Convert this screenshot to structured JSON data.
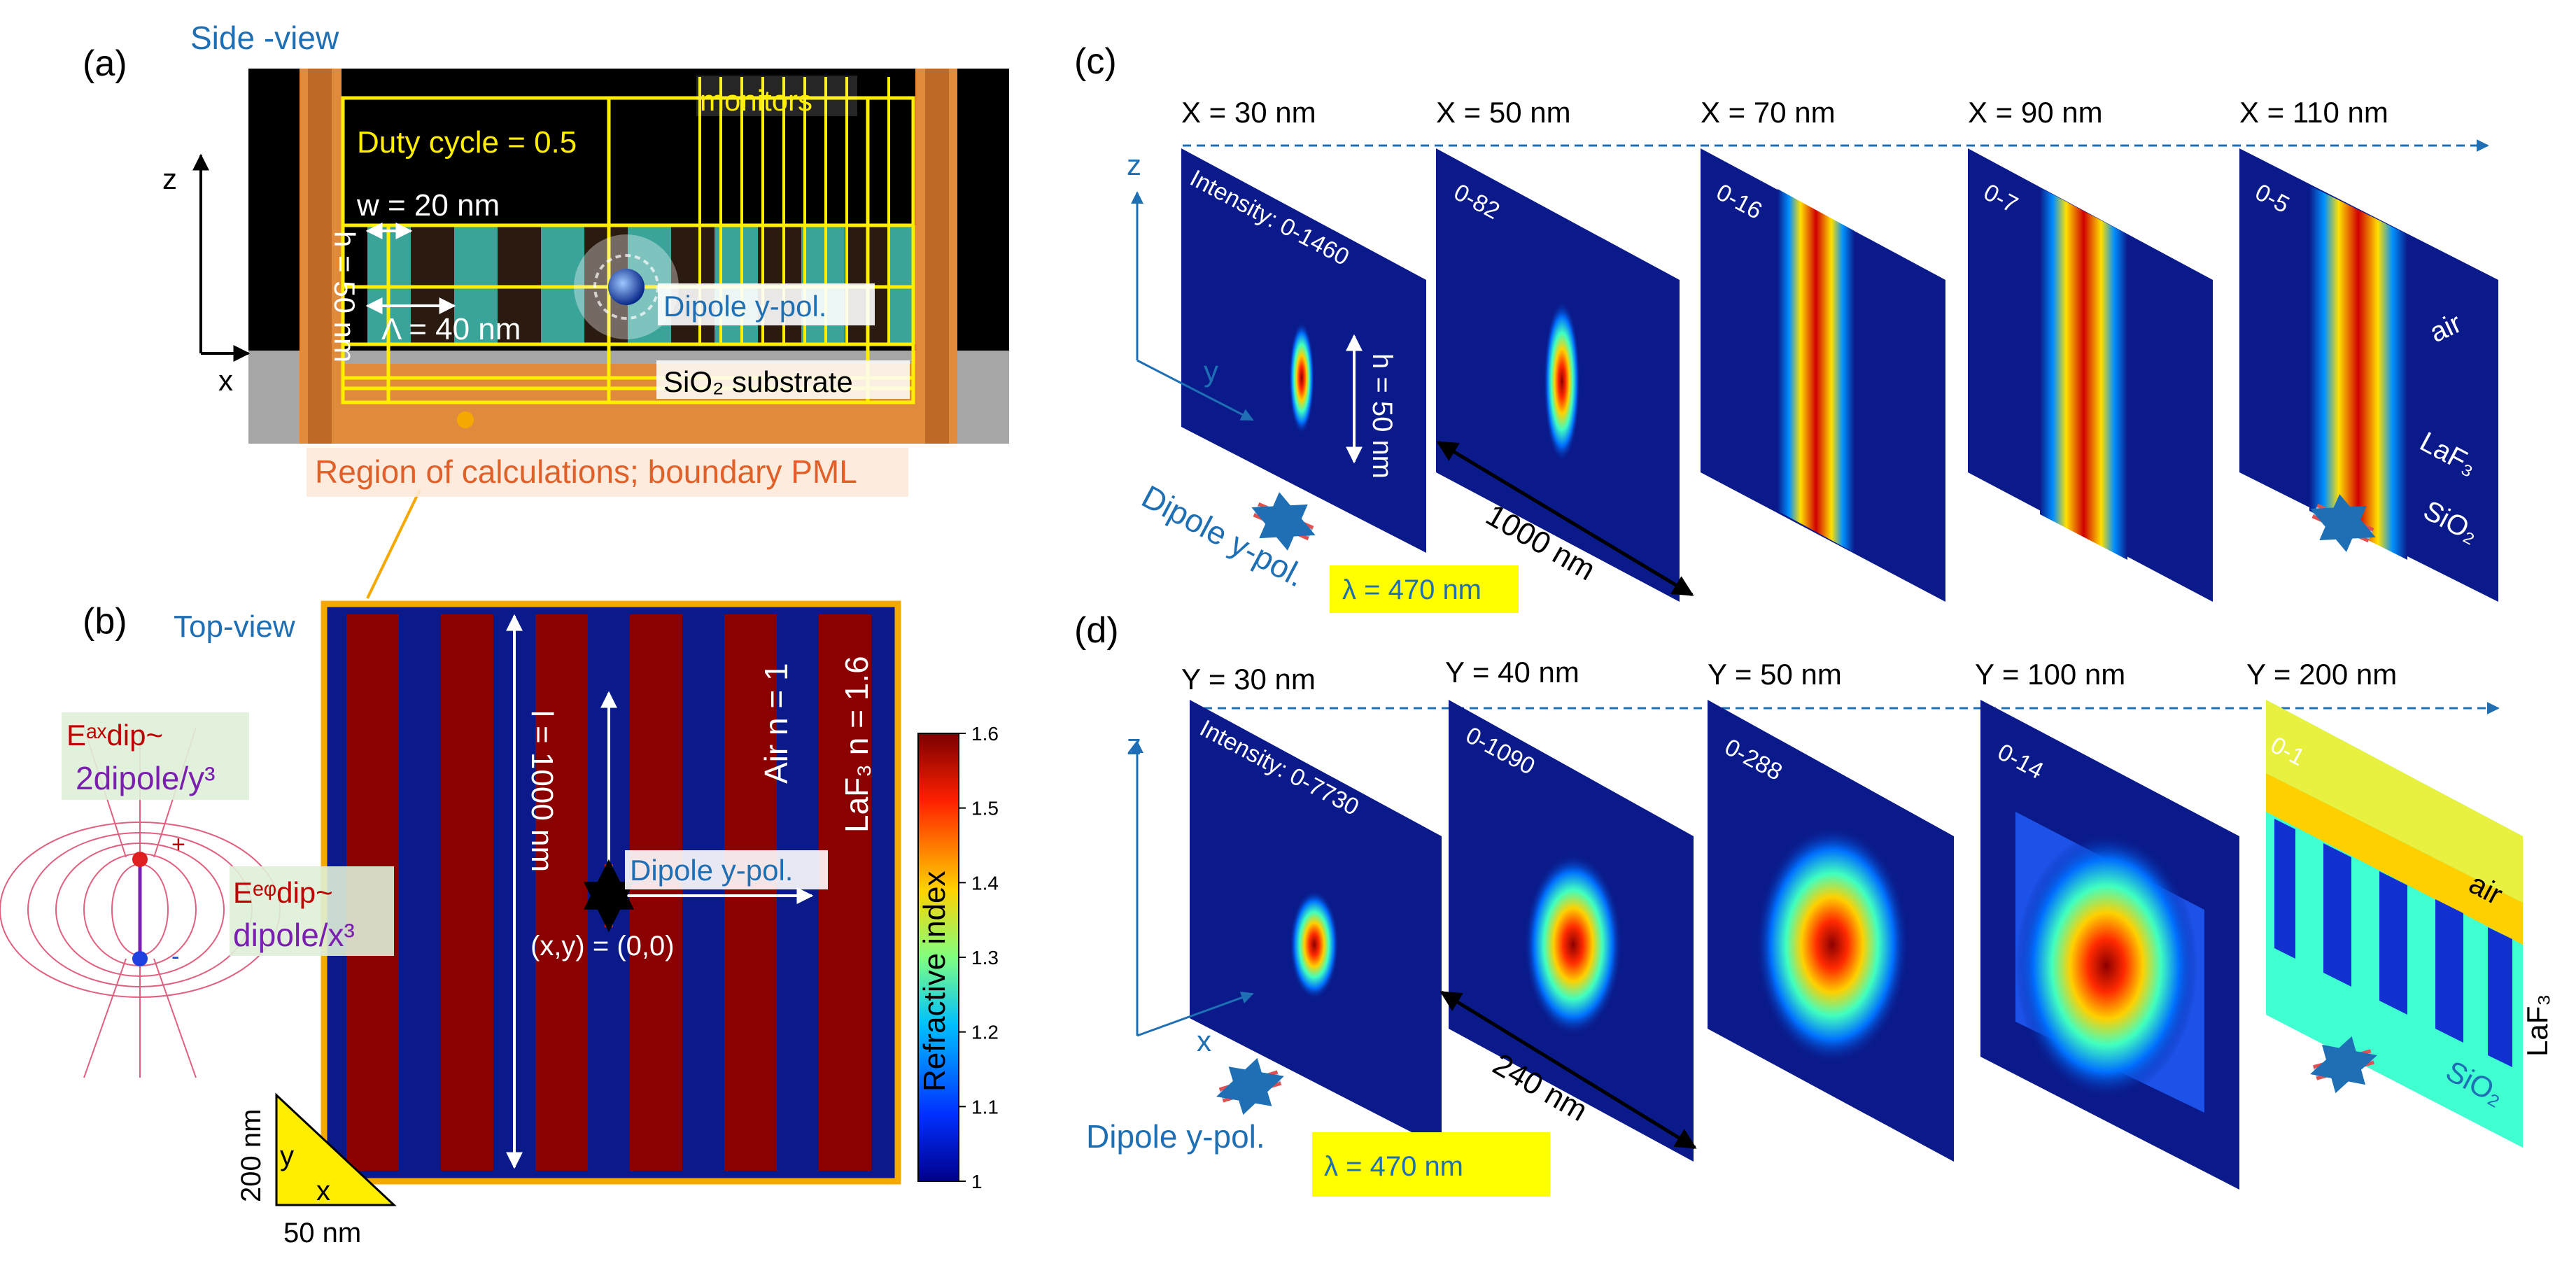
{
  "panel_a": {
    "label": "(a)",
    "view_title": "Side -view",
    "monitors": "monitors",
    "duty_cycle": "Duty cycle = 0.5",
    "w_label": "w = 20 nm",
    "period_label": "Λ = 40 nm",
    "height_label": "h = 50 nm",
    "dipole_label": "Dipole y-pol.",
    "substrate_label": "SiO₂ substrate",
    "region_label": "Region of calculations; boundary PML",
    "axis_z": "z",
    "axis_x": "x"
  },
  "panel_b": {
    "label": "(b)",
    "view_title": "Top-view",
    "length_label": "l = 1000 nm",
    "dipole_label": "Dipole y-pol.",
    "origin_label": "(x,y) = (0,0)",
    "air_label": "Air  n = 1",
    "laf3_label": "LaF₃  n = 1.6",
    "colorbar_title": "Refractive index",
    "colorbar_ticks": [
      "1.6",
      "1.5",
      "1.4",
      "1.3",
      "1.2",
      "1.1",
      "1"
    ],
    "eax_label": "Eᵃˣdip~",
    "eax_formula": "2dipole/y³",
    "eeq_label": "Eᵉᵠdip~",
    "eeq_formula": "dipole/x³",
    "tri_y": "y",
    "tri_x": "x",
    "dim_y": "200 nm",
    "dim_x": "50 nm",
    "plus": "+",
    "minus": "-"
  },
  "panel_c": {
    "label": "(c)",
    "slices": [
      {
        "pos": "X = 30 nm",
        "intensity": "Intensity: 0-1460"
      },
      {
        "pos": "X = 50 nm",
        "intensity": "0-82"
      },
      {
        "pos": "X = 70 nm",
        "intensity": "0-16"
      },
      {
        "pos": "X = 90 nm",
        "intensity": "0-7"
      },
      {
        "pos": "X = 110 nm",
        "intensity": "0-5"
      }
    ],
    "h_label": "h = 50 nm",
    "len_label": "1000 nm",
    "dipole_label": "Dipole y-pol.",
    "lambda_label": "λ = 470 nm",
    "air": "air",
    "laf3": "LaF₃",
    "sio2": "SiO₂",
    "axis_z": "z",
    "axis_y": "y"
  },
  "panel_d": {
    "label": "(d)",
    "slices": [
      {
        "pos": "Y = 30 nm",
        "intensity": "Intensity: 0-7730"
      },
      {
        "pos": "Y = 40 nm",
        "intensity": "0-1090"
      },
      {
        "pos": "Y = 50 nm",
        "intensity": "0-288"
      },
      {
        "pos": "Y = 100 nm",
        "intensity": "0-14"
      },
      {
        "pos": "Y = 200 nm",
        "intensity": "0-1"
      }
    ],
    "len_label": "240 nm",
    "dipole_label": "Dipole y-pol.",
    "lambda_label": "λ = 470 nm",
    "air": "air",
    "laf3": "LaF₃",
    "sio2": "SiO₂",
    "axis_z": "z",
    "axis_x": "x"
  },
  "colors": {
    "navy": "#0a1a8a",
    "laf3_red": "#8b0000",
    "pml_orange": "#e08a3c",
    "blue_label": "#1f6fb5",
    "yellow": "#ffff00",
    "frame_orange": "#f5a800"
  }
}
